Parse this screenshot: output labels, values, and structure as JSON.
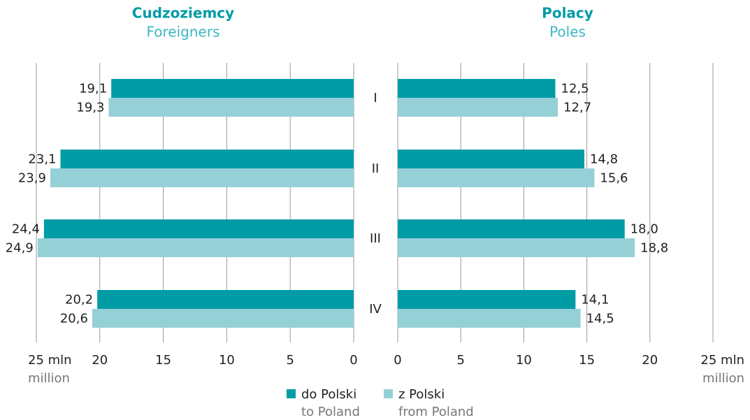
{
  "chart_data": [
    {
      "type": "hbar",
      "title": "Cudzoziemcy",
      "subtitle": "Foreigners",
      "direction": "left",
      "categories": [
        "I",
        "II",
        "III",
        "IV"
      ],
      "series": [
        {
          "name": "do Polski",
          "name_en": "to Poland",
          "color": "#009ca6",
          "values": [
            19.1,
            23.1,
            24.4,
            20.2
          ],
          "value_labels": [
            "19,1",
            "23,1",
            "24,4",
            "20,2"
          ]
        },
        {
          "name": "z Polski",
          "name_en": "from Poland",
          "color": "#96d0d7",
          "values": [
            19.3,
            23.9,
            24.9,
            20.6
          ],
          "value_labels": [
            "19,3",
            "23,9",
            "24,9",
            "20,6"
          ]
        }
      ],
      "xlim": [
        0,
        25
      ],
      "xticks": [
        0,
        5,
        10,
        15,
        20,
        {
          "value": 25,
          "label": "25 mln"
        }
      ],
      "xunit_en": "million",
      "grid": true
    },
    {
      "type": "hbar",
      "title": "Polacy",
      "subtitle": "Poles",
      "direction": "right",
      "series": [
        {
          "color": "#009ca6",
          "values": [
            12.5,
            14.8,
            18.0,
            14.1
          ],
          "value_labels": [
            "12,5",
            "14,8",
            "18,0",
            "14,1"
          ]
        },
        {
          "color": "#96d0d7",
          "values": [
            12.7,
            15.6,
            18.8,
            14.5
          ],
          "value_labels": [
            "12,7",
            "15,6",
            "18,8",
            "14,5"
          ]
        }
      ],
      "xlim": [
        0,
        25
      ],
      "xticks": [
        0,
        5,
        10,
        15,
        20,
        {
          "value": 25,
          "label": "25 mln"
        }
      ],
      "xunit_en": "million",
      "grid": true
    }
  ]
}
